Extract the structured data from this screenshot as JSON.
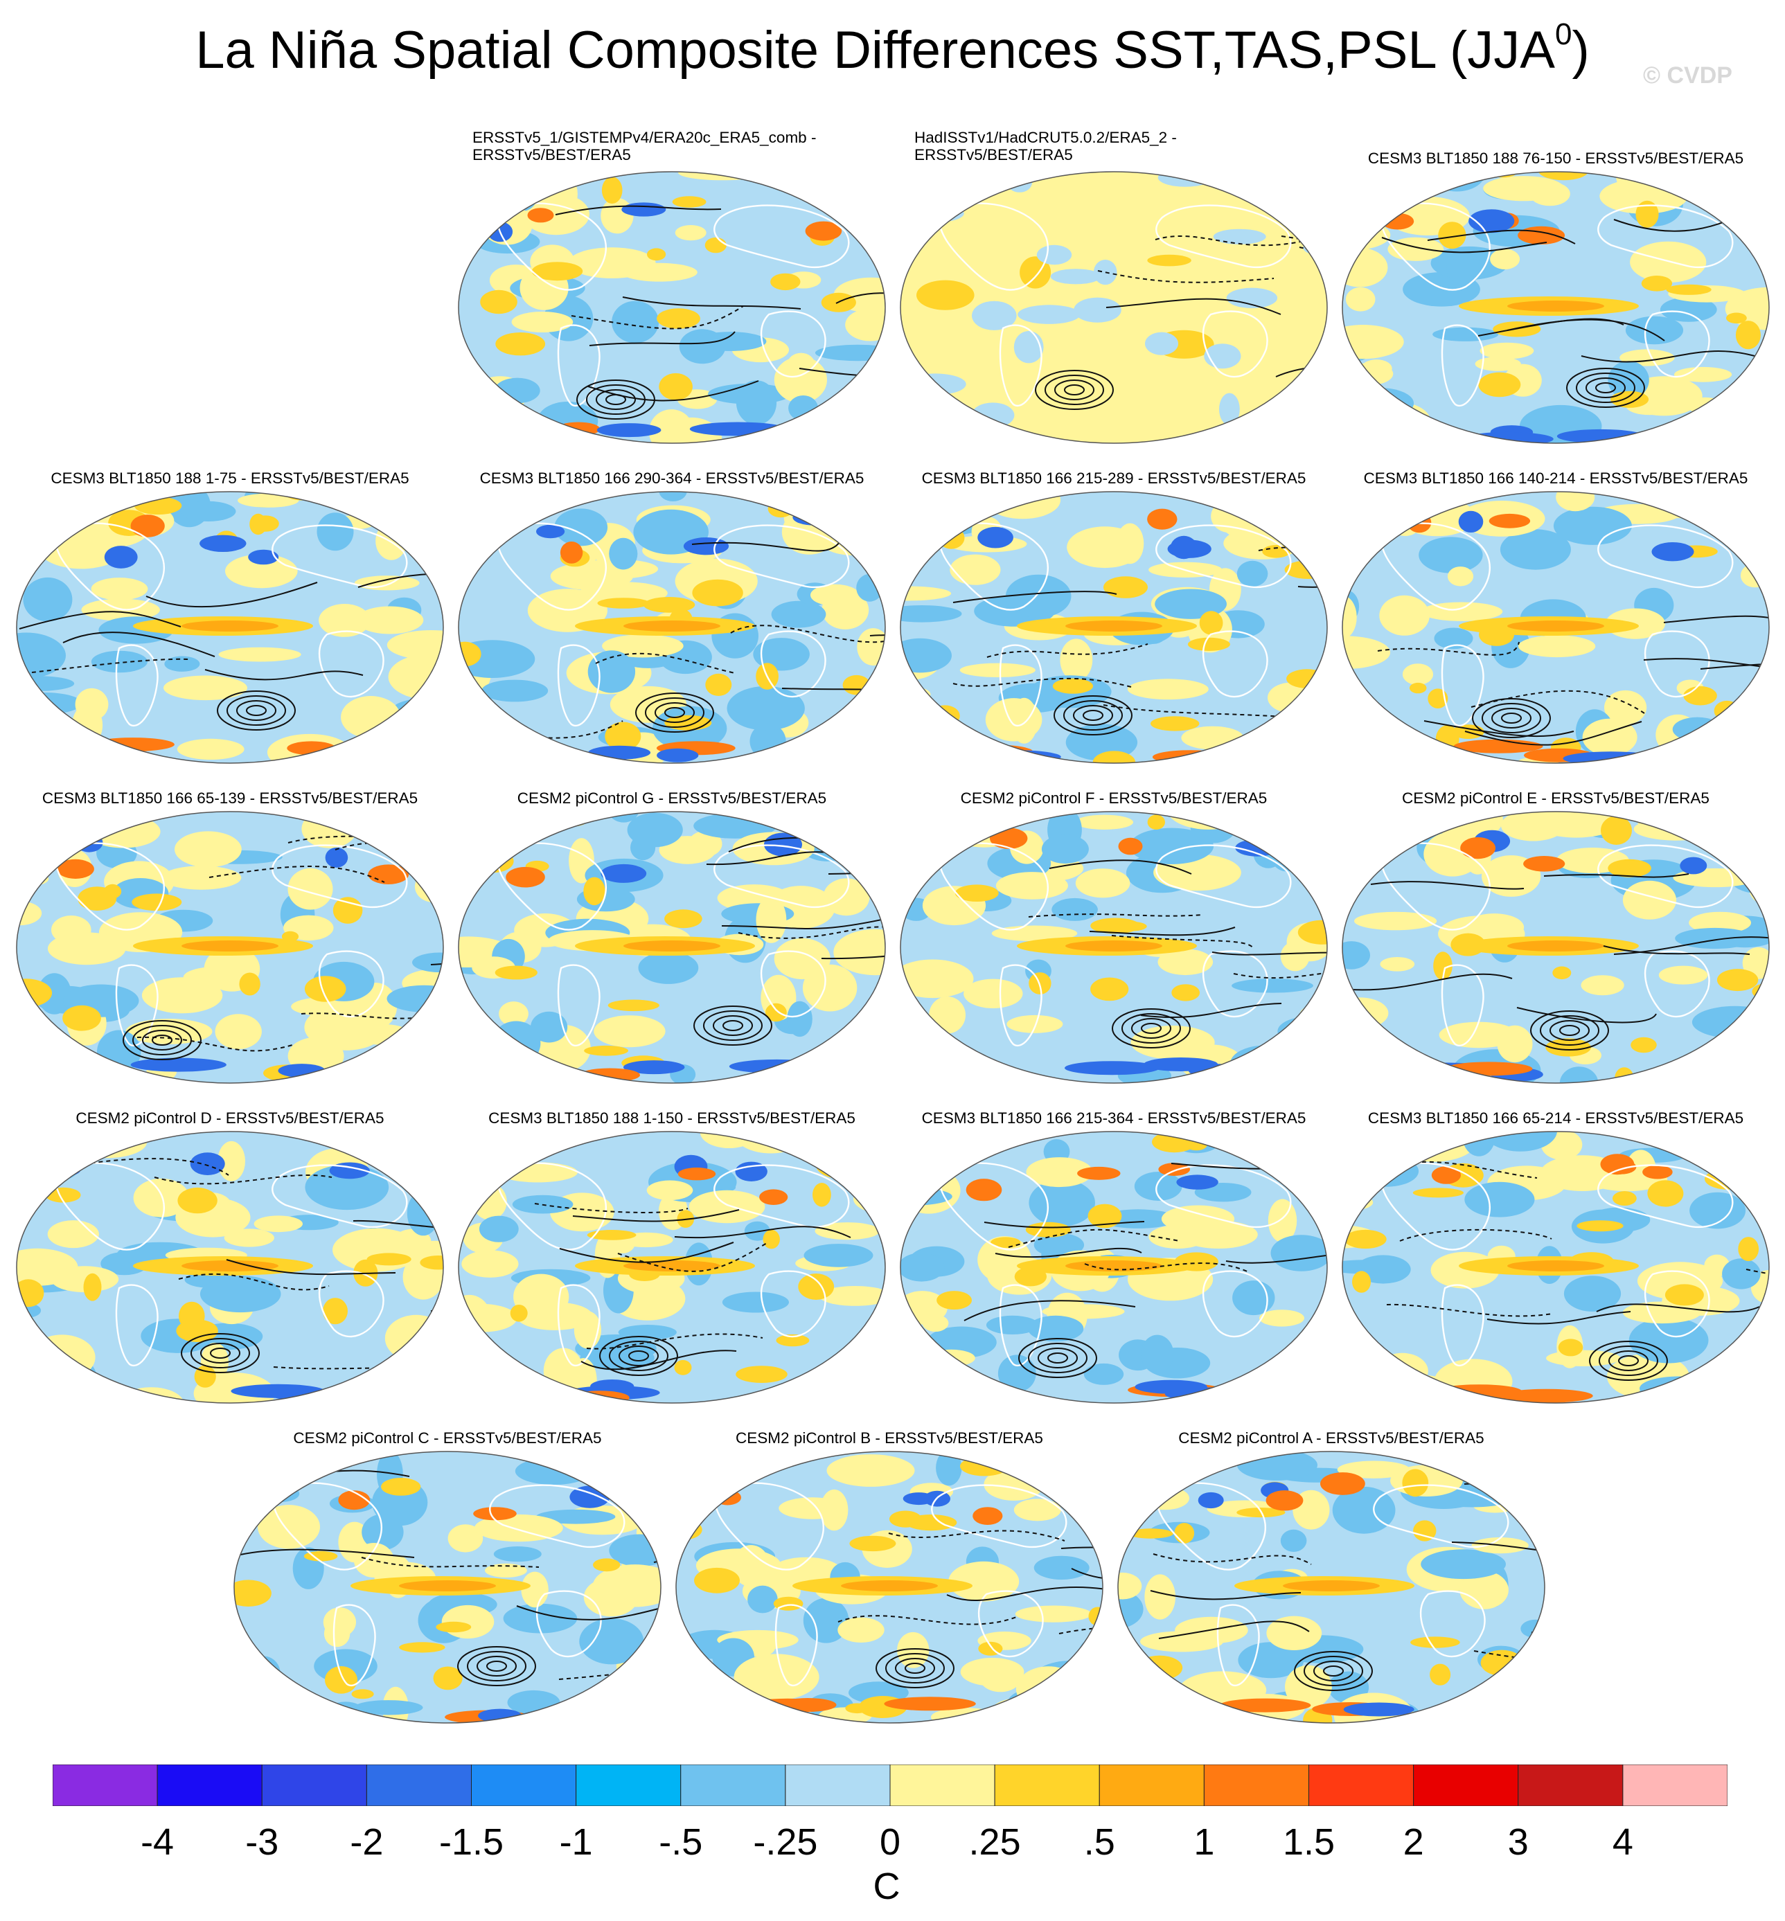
{
  "figure": {
    "title": "La Niña Spatial Composite Differences SST,TAS,PSL (JJA",
    "title_superscript": "0",
    "title_close": ")",
    "watermark": "© CVDP"
  },
  "panels": [
    {
      "label": "ERSSTv5_1/GISTEMPv4/ERA20c_ERA5_comb -",
      "label2": "ERSSTv5/BEST/ERA5",
      "pattern": "obs-gistemp"
    },
    {
      "label": "HadISSTv1/HadCRUT5.0.2/ERA5_2 -",
      "label2": "ERSSTv5/BEST/ERA5",
      "pattern": "obs-hadisst"
    },
    {
      "label": "CESM3 BLT1850 188 76-150 - ERSSTv5/BEST/ERA5",
      "pattern": "model"
    },
    {
      "label": "CESM3 BLT1850 188 1-75 - ERSSTv5/BEST/ERA5",
      "pattern": "model"
    },
    {
      "label": "CESM3 BLT1850 166 290-364 - ERSSTv5/BEST/ERA5",
      "pattern": "model"
    },
    {
      "label": "CESM3 BLT1850 166 215-289 - ERSSTv5/BEST/ERA5",
      "pattern": "model"
    },
    {
      "label": "CESM3 BLT1850 166 140-214 - ERSSTv5/BEST/ERA5",
      "pattern": "model"
    },
    {
      "label": "CESM3 BLT1850 166 65-139 - ERSSTv5/BEST/ERA5",
      "pattern": "model"
    },
    {
      "label": "CESM2 piControl G - ERSSTv5/BEST/ERA5",
      "pattern": "model"
    },
    {
      "label": "CESM2 piControl F - ERSSTv5/BEST/ERA5",
      "pattern": "model"
    },
    {
      "label": "CESM2 piControl E - ERSSTv5/BEST/ERA5",
      "pattern": "model"
    },
    {
      "label": "CESM2 piControl D - ERSSTv5/BEST/ERA5",
      "pattern": "model"
    },
    {
      "label": "CESM3 BLT1850 188 1-150 - ERSSTv5/BEST/ERA5",
      "pattern": "model"
    },
    {
      "label": "CESM3 BLT1850 166 215-364 - ERSSTv5/BEST/ERA5",
      "pattern": "model"
    },
    {
      "label": "CESM3 BLT1850 166 65-214 - ERSSTv5/BEST/ERA5",
      "pattern": "model"
    },
    {
      "label": "CESM2 piControl C - ERSSTv5/BEST/ERA5",
      "pattern": "model"
    },
    {
      "label": "CESM2 piControl B - ERSSTv5/BEST/ERA5",
      "pattern": "model"
    },
    {
      "label": "CESM2 piControl A - ERSSTv5/BEST/ERA5",
      "pattern": "model"
    }
  ],
  "colorbar": {
    "units": "C",
    "tick_labels": [
      "-4",
      "-3",
      "-2",
      "-1.5",
      "-1",
      "-.5",
      "-.25",
      "0",
      ".25",
      ".5",
      "1",
      "1.5",
      "2",
      "3",
      "4"
    ],
    "colors": [
      "#8a2be2",
      "#1a0cf5",
      "#2f45e8",
      "#2f6ee8",
      "#1e8cf5",
      "#00b4f5",
      "#6fc2ef",
      "#b0dcf4",
      "#fff59a",
      "#ffd42a",
      "#ffaa12",
      "#ff7a12",
      "#ff3a12",
      "#e80000",
      "#c81818",
      "#ffb6b6"
    ]
  }
}
